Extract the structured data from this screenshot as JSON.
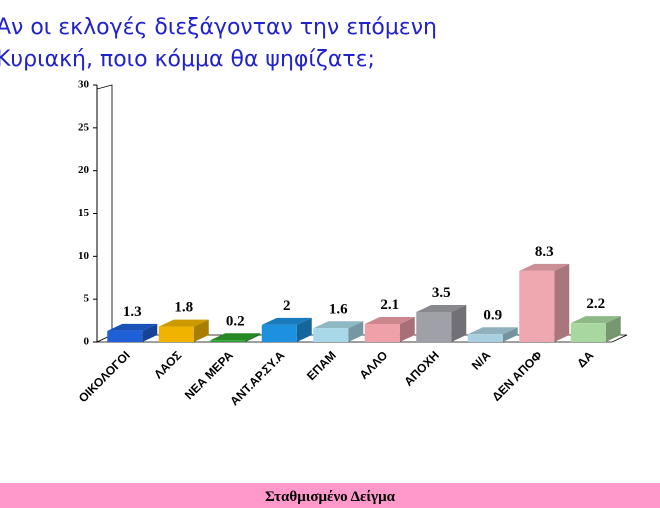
{
  "chart_data": {
    "type": "bar3d",
    "title": [
      "Αν οι εκλογές διεξάγονταν την επόμενη",
      "Κυριακή, ποιο κόμμα θα ψηφίζατε;"
    ],
    "footer": "Σταθμισμένο Δείγμα",
    "categories": [
      "ΟΙΚΟΛΟΓΟΙ",
      "ΛΑΟΣ",
      "ΝΕΑ ΜΕΡΑ",
      "ΑΝΤ.ΑΡ.ΣΥ.Α",
      "ΕΠΑΜ",
      "ΑΛΛΟ",
      "ΑΠΟΧΗ",
      "Ν/Α",
      "ΔΕΝ ΑΠΟΦ",
      "ΔΑ"
    ],
    "values": [
      1.3,
      1.8,
      0.2,
      2,
      1.6,
      2.1,
      3.5,
      0.9,
      8.3,
      2.2
    ],
    "colors": [
      "#1f5fd8",
      "#f0b400",
      "#2ca02c",
      "#1e90e0",
      "#a8d8e8",
      "#f0a0a8",
      "#a0a0a8",
      "#a8d0e0",
      "#f0a8b0",
      "#a8d8a0"
    ],
    "ylim": [
      0,
      30
    ],
    "yticks": [
      0,
      5,
      10,
      15,
      20,
      25,
      30
    ]
  }
}
